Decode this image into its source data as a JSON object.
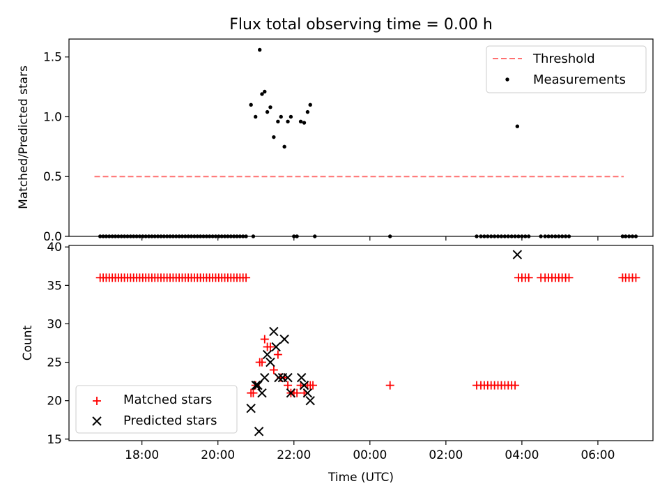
{
  "title": "Flux total observing time = 0.00 h",
  "chart_data": [
    {
      "type": "scatter",
      "ylabel": "Matched/Predicted stars",
      "ylim": [
        0,
        1.65
      ],
      "yticks": [
        {
          "v": 0.0,
          "label": "0.0"
        },
        {
          "v": 0.5,
          "label": "0.5"
        },
        {
          "v": 1.0,
          "label": "1.0"
        },
        {
          "v": 1.5,
          "label": "1.5"
        }
      ],
      "xlim": [
        16.08,
        31.45
      ],
      "legend_position": "top-right",
      "threshold": {
        "name": "Threshold",
        "value": 0.5,
        "x_range": [
          16.75,
          30.68
        ],
        "color": "#ff7070"
      },
      "measurements": {
        "name": "Measurements",
        "color": "#000000",
        "points": [
          [
            20.87,
            1.1
          ],
          [
            20.99,
            1.0
          ],
          [
            21.1,
            1.56
          ],
          [
            21.16,
            1.19
          ],
          [
            21.23,
            1.21
          ],
          [
            21.3,
            1.04
          ],
          [
            21.38,
            1.08
          ],
          [
            21.47,
            0.83
          ],
          [
            21.58,
            0.96
          ],
          [
            21.66,
            1.0
          ],
          [
            21.75,
            0.75
          ],
          [
            21.84,
            0.96
          ],
          [
            21.92,
            1.0
          ],
          [
            22.18,
            0.96
          ],
          [
            22.27,
            0.95
          ],
          [
            22.36,
            1.04
          ],
          [
            22.43,
            1.1
          ],
          [
            27.88,
            0.92
          ]
        ],
        "zero_x": [
          16.9,
          16.98,
          17.06,
          17.14,
          17.22,
          17.3,
          17.38,
          17.46,
          17.54,
          17.62,
          17.7,
          17.78,
          17.86,
          17.94,
          18.02,
          18.1,
          18.18,
          18.26,
          18.34,
          18.42,
          18.5,
          18.58,
          18.66,
          18.74,
          18.82,
          18.9,
          18.98,
          19.06,
          19.14,
          19.22,
          19.3,
          19.38,
          19.46,
          19.54,
          19.62,
          19.7,
          19.78,
          19.86,
          19.94,
          20.02,
          20.1,
          20.18,
          20.26,
          20.34,
          20.42,
          20.5,
          20.58,
          20.66,
          20.74,
          20.93,
          22.0,
          22.08,
          22.55,
          24.53,
          26.81,
          26.92,
          27.01,
          27.1,
          27.19,
          27.28,
          27.37,
          27.46,
          27.55,
          27.64,
          27.73,
          27.82,
          27.91,
          28.0,
          28.09,
          28.18,
          28.5,
          28.61,
          28.7,
          28.79,
          28.88,
          28.97,
          29.06,
          29.15,
          29.24,
          30.65,
          30.73,
          30.82,
          30.91,
          31.0
        ]
      }
    },
    {
      "type": "scatter",
      "xlabel": "Time (UTC)",
      "ylabel": "Count",
      "ylim": [
        14.8,
        40.2
      ],
      "yticks": [
        {
          "v": 15,
          "label": "15"
        },
        {
          "v": 20,
          "label": "20"
        },
        {
          "v": 25,
          "label": "25"
        },
        {
          "v": 30,
          "label": "30"
        },
        {
          "v": 35,
          "label": "35"
        },
        {
          "v": 40,
          "label": "40"
        }
      ],
      "xlim": [
        16.08,
        31.45
      ],
      "xticks": [
        {
          "v": 18,
          "label": "18:00"
        },
        {
          "v": 20,
          "label": "20:00"
        },
        {
          "v": 22,
          "label": "22:00"
        },
        {
          "v": 24,
          "label": "00:00"
        },
        {
          "v": 26,
          "label": "02:00"
        },
        {
          "v": 28,
          "label": "04:00"
        },
        {
          "v": 30,
          "label": "06:00"
        }
      ],
      "legend_position": "bottom-left",
      "series": [
        {
          "name": "Matched stars",
          "marker": "plus",
          "color": "#ff0000",
          "points": [
            [
              16.9,
              36
            ],
            [
              16.98,
              36
            ],
            [
              17.06,
              36
            ],
            [
              17.14,
              36
            ],
            [
              17.22,
              36
            ],
            [
              17.3,
              36
            ],
            [
              17.38,
              36
            ],
            [
              17.46,
              36
            ],
            [
              17.54,
              36
            ],
            [
              17.62,
              36
            ],
            [
              17.7,
              36
            ],
            [
              17.78,
              36
            ],
            [
              17.86,
              36
            ],
            [
              17.94,
              36
            ],
            [
              18.02,
              36
            ],
            [
              18.1,
              36
            ],
            [
              18.18,
              36
            ],
            [
              18.26,
              36
            ],
            [
              18.34,
              36
            ],
            [
              18.42,
              36
            ],
            [
              18.5,
              36
            ],
            [
              18.58,
              36
            ],
            [
              18.66,
              36
            ],
            [
              18.74,
              36
            ],
            [
              18.82,
              36
            ],
            [
              18.9,
              36
            ],
            [
              18.98,
              36
            ],
            [
              19.06,
              36
            ],
            [
              19.14,
              36
            ],
            [
              19.22,
              36
            ],
            [
              19.3,
              36
            ],
            [
              19.38,
              36
            ],
            [
              19.46,
              36
            ],
            [
              19.54,
              36
            ],
            [
              19.62,
              36
            ],
            [
              19.7,
              36
            ],
            [
              19.78,
              36
            ],
            [
              19.86,
              36
            ],
            [
              19.94,
              36
            ],
            [
              20.02,
              36
            ],
            [
              20.1,
              36
            ],
            [
              20.18,
              36
            ],
            [
              20.26,
              36
            ],
            [
              20.34,
              36
            ],
            [
              20.42,
              36
            ],
            [
              20.5,
              36
            ],
            [
              20.58,
              36
            ],
            [
              20.66,
              36
            ],
            [
              20.74,
              36
            ],
            [
              20.87,
              21
            ],
            [
              20.93,
              21
            ],
            [
              20.99,
              22
            ],
            [
              21.1,
              25
            ],
            [
              21.16,
              25
            ],
            [
              21.23,
              28
            ],
            [
              21.3,
              27
            ],
            [
              21.38,
              27
            ],
            [
              21.47,
              24
            ],
            [
              21.58,
              26
            ],
            [
              21.66,
              23
            ],
            [
              21.75,
              23
            ],
            [
              21.84,
              22
            ],
            [
              21.92,
              21
            ],
            [
              22.0,
              21
            ],
            [
              22.08,
              21
            ],
            [
              22.18,
              22
            ],
            [
              22.27,
              21
            ],
            [
              22.36,
              22
            ],
            [
              22.43,
              22
            ],
            [
              22.5,
              22
            ],
            [
              24.53,
              22
            ],
            [
              26.81,
              22
            ],
            [
              26.92,
              22
            ],
            [
              27.01,
              22
            ],
            [
              27.1,
              22
            ],
            [
              27.19,
              22
            ],
            [
              27.28,
              22
            ],
            [
              27.37,
              22
            ],
            [
              27.46,
              22
            ],
            [
              27.55,
              22
            ],
            [
              27.64,
              22
            ],
            [
              27.73,
              22
            ],
            [
              27.82,
              22
            ],
            [
              27.91,
              36
            ],
            [
              28.0,
              36
            ],
            [
              28.09,
              36
            ],
            [
              28.18,
              36
            ],
            [
              28.5,
              36
            ],
            [
              28.61,
              36
            ],
            [
              28.7,
              36
            ],
            [
              28.79,
              36
            ],
            [
              28.88,
              36
            ],
            [
              28.97,
              36
            ],
            [
              29.06,
              36
            ],
            [
              29.15,
              36
            ],
            [
              29.24,
              36
            ],
            [
              30.65,
              36
            ],
            [
              30.73,
              36
            ],
            [
              30.82,
              36
            ],
            [
              30.91,
              36
            ],
            [
              31.0,
              36
            ]
          ]
        },
        {
          "name": "Predicted stars",
          "marker": "x",
          "color": "#000000",
          "points": [
            [
              20.87,
              19
            ],
            [
              21.0,
              22
            ],
            [
              21.05,
              22
            ],
            [
              21.08,
              16
            ],
            [
              21.16,
              21
            ],
            [
              21.23,
              23
            ],
            [
              21.3,
              26
            ],
            [
              21.38,
              25
            ],
            [
              21.47,
              29
            ],
            [
              21.53,
              27
            ],
            [
              21.6,
              23
            ],
            [
              21.7,
              23
            ],
            [
              21.75,
              28
            ],
            [
              21.84,
              23
            ],
            [
              21.92,
              21
            ],
            [
              22.2,
              23
            ],
            [
              22.27,
              22
            ],
            [
              22.36,
              21
            ],
            [
              22.43,
              20
            ],
            [
              27.88,
              39
            ]
          ]
        }
      ]
    }
  ]
}
